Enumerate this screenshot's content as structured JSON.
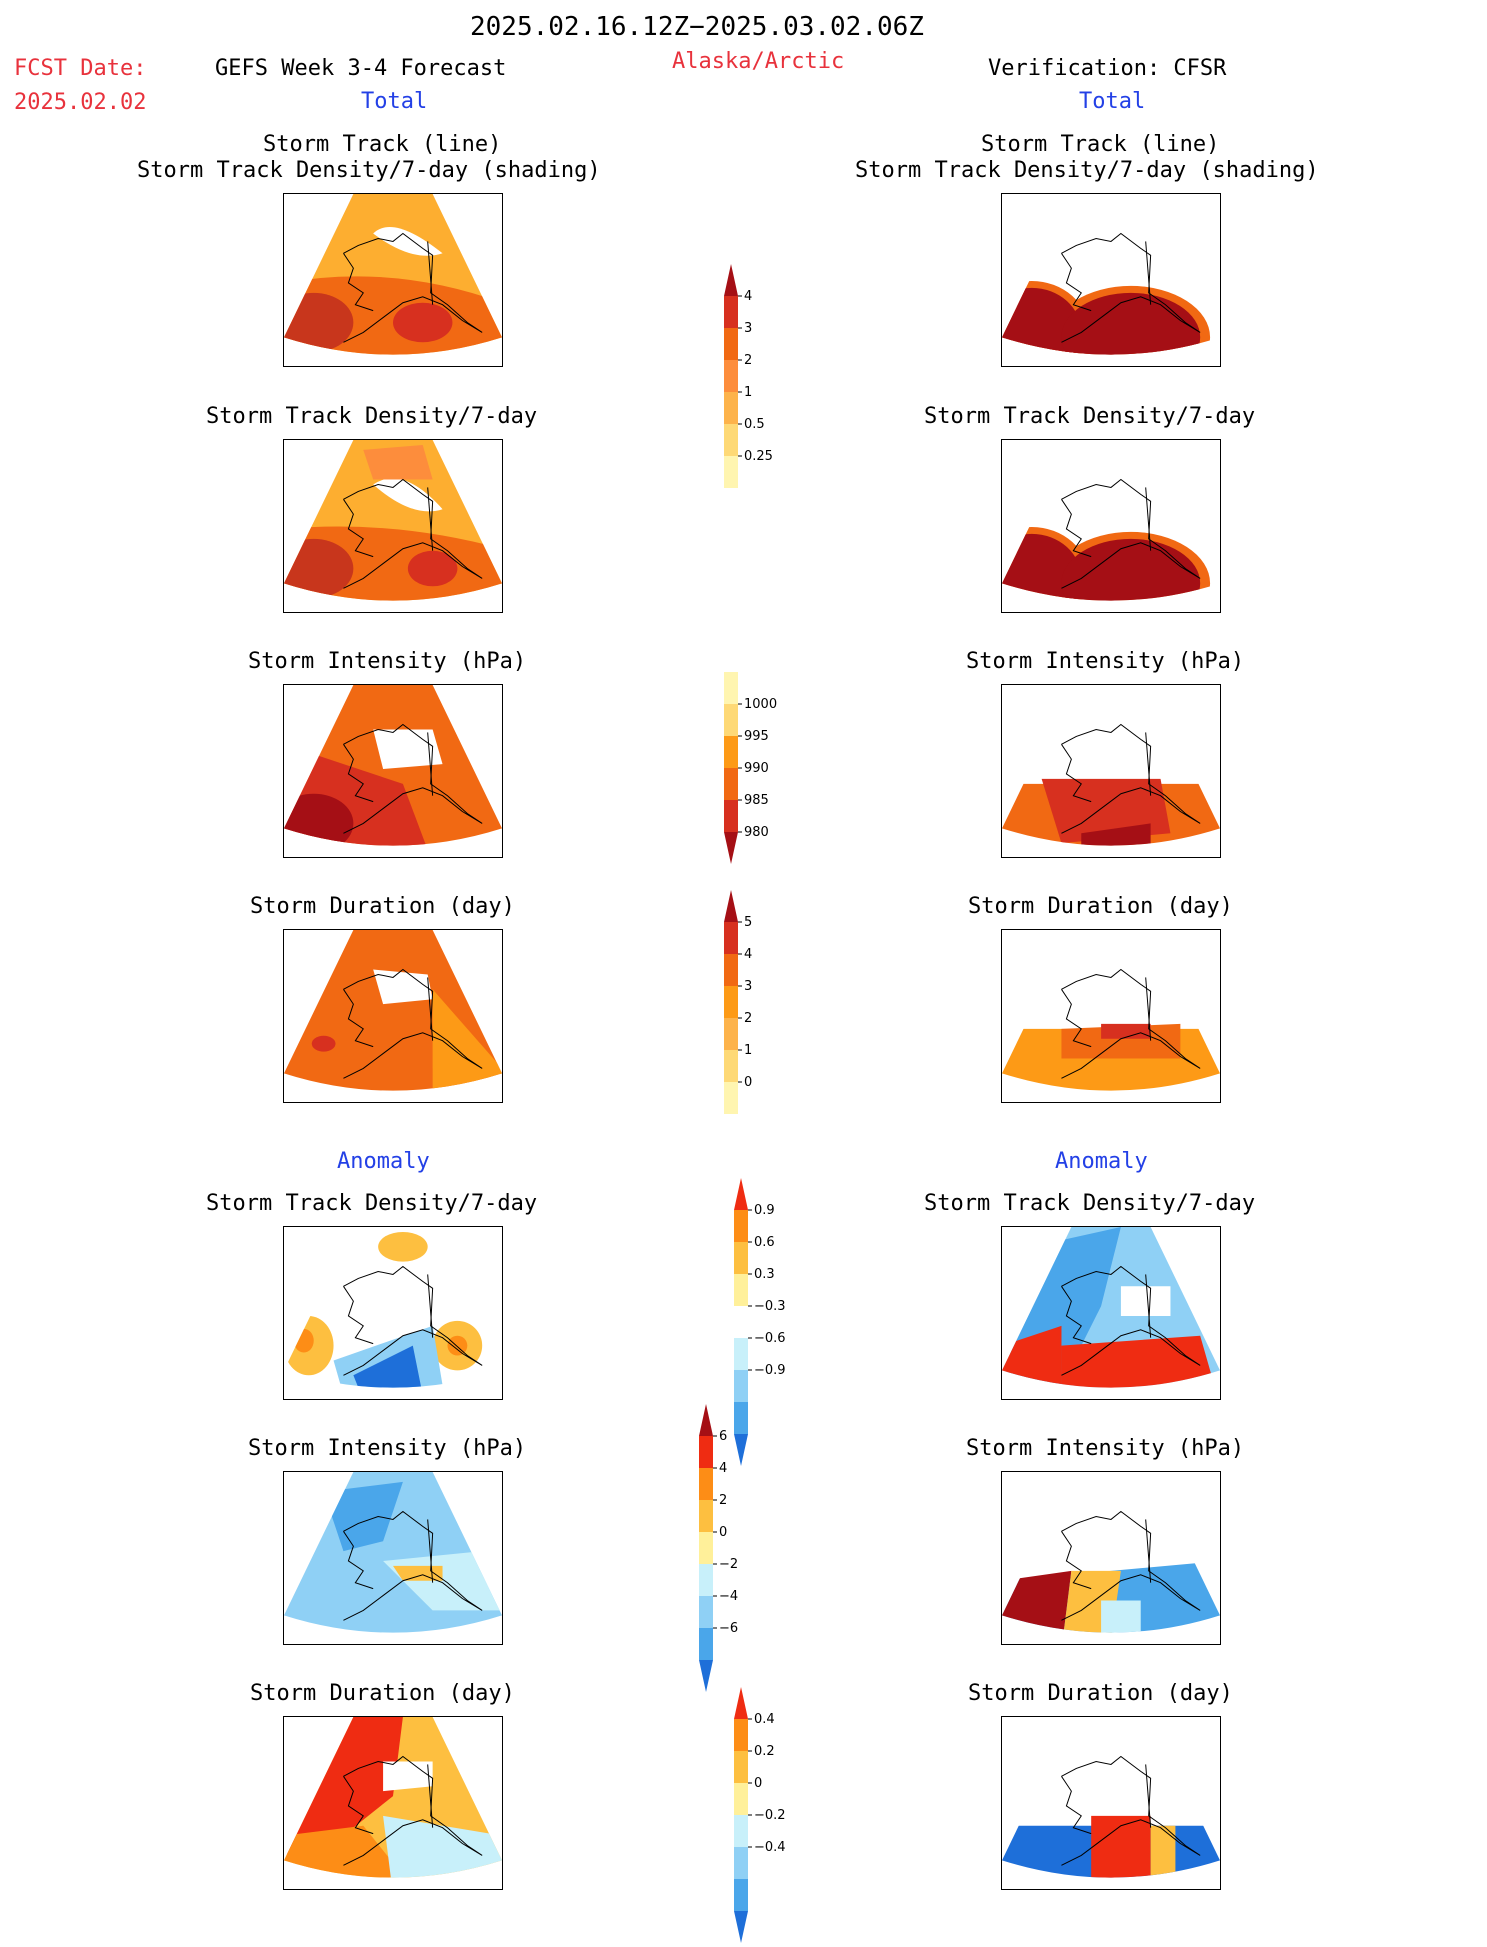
{
  "header": {
    "date_range": "2025.02.16.12Z−2025.03.02.06Z",
    "fcst_label": "FCST Date:",
    "fcst_date": "2025.02.02",
    "left_title": "GEFS Week 3-4 Forecast",
    "region": "Alaska/Arctic",
    "right_title": "Verification: CFSR",
    "left_total": "Total",
    "right_total": "Total"
  },
  "sections": {
    "anomaly_left": "Anomaly",
    "anomaly_right": "Anomaly"
  },
  "panel_titles": {
    "track_line": "Storm Track (line)",
    "track_density_shading": "Storm Track Density/7-day (shading)",
    "track_density": "Storm Track Density/7-day",
    "intensity": "Storm Intensity (hPa)",
    "duration": "Storm Duration (day)"
  },
  "colorbars": [
    {
      "name": "track-density",
      "labels": [
        "4",
        "3",
        "2",
        "1",
        "0.5",
        "0.25"
      ],
      "colors": [
        "#a50f15",
        "#d7301f",
        "#f16913",
        "#fd8d3c",
        "#fdb34b",
        "#fed976",
        "#fff5b0"
      ]
    },
    {
      "name": "intensity",
      "labels": [
        "1000",
        "995",
        "990",
        "985",
        "980"
      ],
      "colors": [
        "#fff5b0",
        "#fed976",
        "#fd9a16",
        "#f16913",
        "#d7301f",
        "#a50f15"
      ]
    },
    {
      "name": "duration",
      "labels": [
        "5",
        "4",
        "3",
        "2",
        "1",
        "0"
      ],
      "colors": [
        "#a50f15",
        "#d7301f",
        "#f16913",
        "#fd9a16",
        "#fdb34b",
        "#fed976",
        "#fff5b0"
      ]
    },
    {
      "name": "track-anomaly",
      "labels": [
        "0.9",
        "0.6",
        "0.3",
        "−0.3",
        "−0.6",
        "−0.9"
      ],
      "colors": [
        "#ef2c12",
        "#fd8d16",
        "#fdbf40",
        "#fff09a",
        "#ffffff",
        "#c8f0fa",
        "#8fd0f5",
        "#4aa6ea",
        "#1e6fd9"
      ]
    },
    {
      "name": "intensity-anomaly",
      "labels": [
        "6",
        "4",
        "2",
        "0",
        "−2",
        "−4",
        "−6"
      ],
      "colors": [
        "#a50f15",
        "#ef2c12",
        "#fd8d16",
        "#fdbf40",
        "#fff09a",
        "#c8f0fa",
        "#8fd0f5",
        "#4aa6ea",
        "#1e6fd9"
      ]
    },
    {
      "name": "duration-anomaly",
      "labels": [
        "0.4",
        "0.2",
        "0",
        "−0.2",
        "−0.4"
      ],
      "colors": [
        "#ef2c12",
        "#fd8d16",
        "#fdbf40",
        "#fff09a",
        "#c8f0fa",
        "#8fd0f5",
        "#4aa6ea",
        "#1e6fd9"
      ]
    }
  ]
}
